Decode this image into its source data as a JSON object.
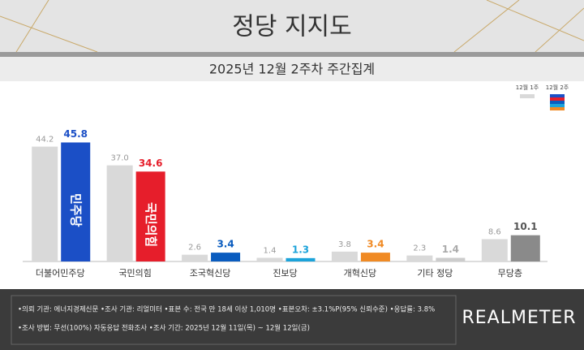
{
  "chart_data": {
    "type": "bar",
    "title": "정당 지지도",
    "subtitle": "2025년 12월 2주차 주간집계",
    "categories": [
      "더불어민주당",
      "국민의힘",
      "조국혁신당",
      "진보당",
      "개혁신당",
      "기타 정당",
      "무당층"
    ],
    "series": [
      {
        "name": "12월 1주",
        "color": "#d9d9d9",
        "values": [
          44.2,
          37.0,
          2.6,
          1.4,
          3.8,
          2.3,
          8.6
        ],
        "value_labels": [
          "44.2",
          "37.0",
          "2.6",
          "1.4",
          "3.8",
          "2.3",
          "8.6"
        ]
      },
      {
        "name": "12월 2주",
        "colors": [
          "#1b4fc6",
          "#e61e2b",
          "#0a5cbf",
          "#1ca3da",
          "#f08a24",
          "#cccccc",
          "#8a8a8a"
        ],
        "values": [
          45.8,
          34.6,
          3.4,
          1.3,
          3.4,
          1.4,
          10.1
        ],
        "bar_labels": [
          "민주당",
          "국민의힘",
          null,
          null,
          null,
          null,
          null
        ]
      }
    ],
    "ylim": [
      0,
      50
    ]
  },
  "footer": {
    "notes": [
      "•의뢰 기관: 에너지경제신문  •조사 기관: 리얼미터  •표본 수: 전국 만 18세 이상 1,010명  •표본오차: ±3.1%P(95% 신뢰수준)  •응답률: 3.8%",
      "•조사 방법: 무선(100%) 자동응답 전화조사  •조사 기간: 2025년 12월 11일(목) ~ 12월 12일(금)"
    ],
    "brand": "REALMETER"
  }
}
